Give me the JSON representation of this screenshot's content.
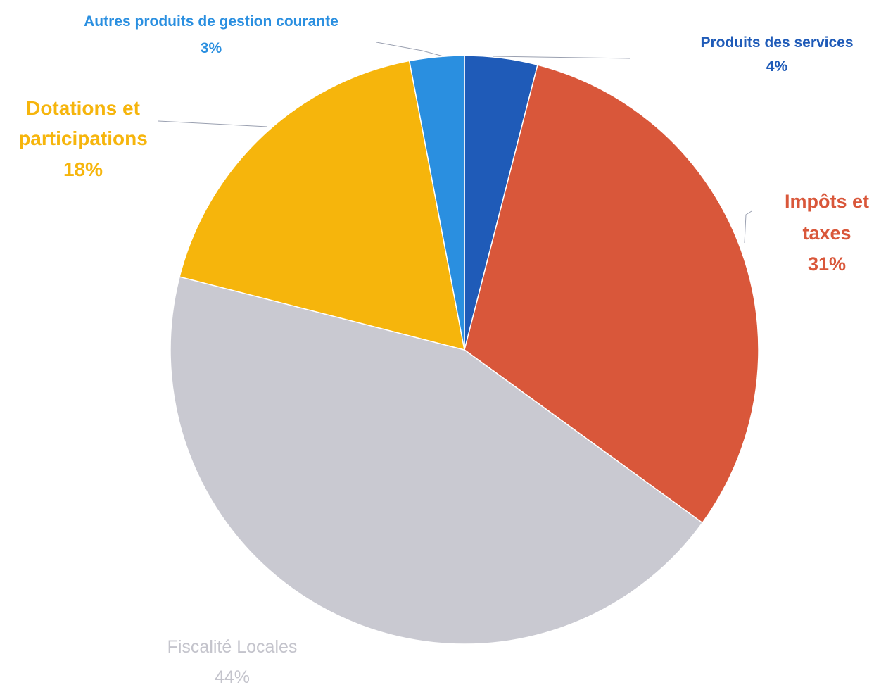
{
  "chart_data": {
    "type": "pie",
    "categories": [
      "Produits des services",
      "Impôts et taxes",
      "Fiscalité Locales",
      "Dotations et participations",
      "Autres produits de gestion courante"
    ],
    "values": [
      4,
      31,
      44,
      18,
      3
    ],
    "value_labels": [
      "4%",
      "31%",
      "44%",
      "18%",
      "3%"
    ],
    "colors": [
      "#1f5bb8",
      "#d9573a",
      "#c9c9d1",
      "#f6b50c",
      "#2a8fe0"
    ]
  }
}
